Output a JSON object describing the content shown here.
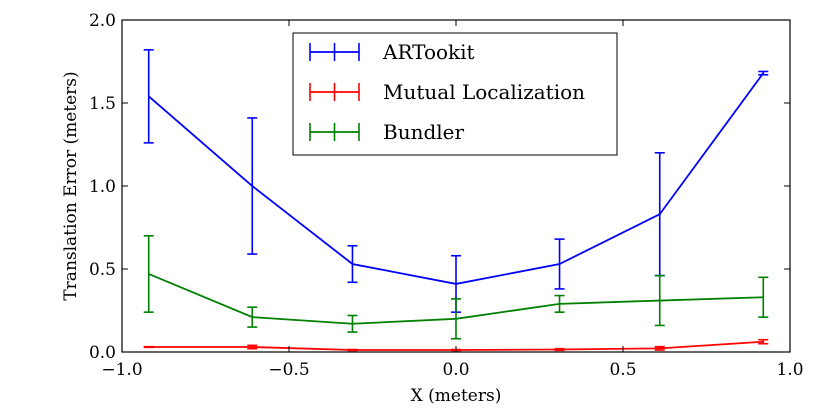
{
  "chart_data": {
    "type": "line",
    "xlabel": "X (meters)",
    "ylabel": "Translation Error (meters)",
    "xlim": [
      -1.0,
      1.0
    ],
    "ylim": [
      0.0,
      2.0
    ],
    "xticks": [
      -1.0,
      -0.5,
      0.0,
      0.5,
      1.0
    ],
    "xtick_labels": [
      "−1.0",
      "−0.5",
      "0.0",
      "0.5",
      "1.0"
    ],
    "yticks": [
      0.0,
      0.5,
      1.0,
      1.5,
      2.0
    ],
    "ytick_labels": [
      "0.0",
      "0.5",
      "1.0",
      "1.5",
      "2.0"
    ],
    "grid": false,
    "legend_position": "top-center",
    "series": [
      {
        "name": "ARTookit",
        "color": "#0000ff",
        "x": [
          -0.92,
          -0.61,
          -0.31,
          0.0,
          0.31,
          0.61,
          0.92
        ],
        "y": [
          1.54,
          1.0,
          0.53,
          0.41,
          0.53,
          0.83,
          1.68
        ],
        "yerr": [
          0.28,
          0.41,
          0.11,
          0.17,
          0.15,
          0.37,
          0.01
        ]
      },
      {
        "name": "Mutual Localization",
        "color": "#ff0000",
        "x": [
          -0.92,
          -0.61,
          -0.31,
          0.0,
          0.31,
          0.61,
          0.92
        ],
        "y": [
          0.03,
          0.03,
          0.012,
          0.012,
          0.015,
          0.022,
          0.062
        ],
        "yerr": [
          0.002,
          0.01,
          0.003,
          0.003,
          0.005,
          0.01,
          0.012
        ]
      },
      {
        "name": "Bundler",
        "color": "#008000",
        "x": [
          -0.92,
          -0.61,
          -0.31,
          0.0,
          0.31,
          0.61,
          0.92
        ],
        "y": [
          0.47,
          0.21,
          0.17,
          0.2,
          0.29,
          0.31,
          0.33
        ],
        "yerr": [
          0.23,
          0.06,
          0.05,
          0.12,
          0.05,
          0.15,
          0.12
        ]
      }
    ]
  }
}
